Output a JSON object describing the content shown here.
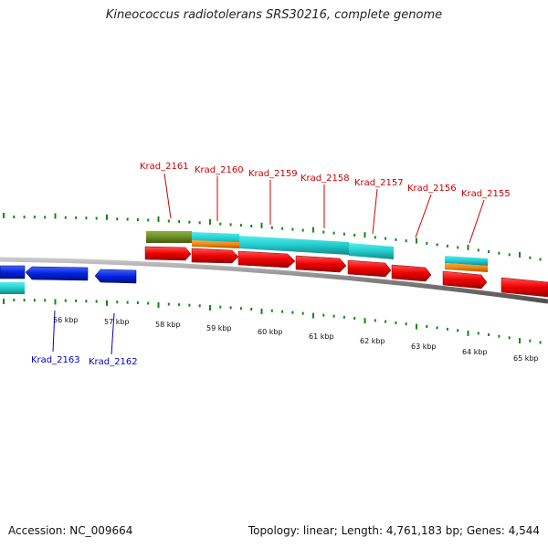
{
  "title": "Kineococcus radiotolerans SRS30216, complete genome",
  "footer": {
    "accession": "Accession: NC_009664",
    "summary": "Topology: linear; Length: 4,761,183 bp; Genes: 4,544"
  },
  "colors": {
    "gene_top": "#cc0000",
    "gene_bottom": "#0000cc",
    "tick": "#118811",
    "backbone": "#808080",
    "arrow_red": "#ee0000",
    "arrow_blue": "#0022dd",
    "bar_cyan": "#22cccc",
    "bar_orange": "#ee8811",
    "bar_olive": "#6b8e23"
  },
  "scale_labels": [
    "56 kbp",
    "57 kbp",
    "58 kbp",
    "59 kbp",
    "60 kbp",
    "61 kbp",
    "62 kbp",
    "63 kbp",
    "64 kbp",
    "65 kbp"
  ],
  "genes_top": [
    "Krad_2161",
    "Krad_2160",
    "Krad_2159",
    "Krad_2158",
    "Krad_2157",
    "Krad_2156",
    "Krad_2155"
  ],
  "genes_bottom": [
    "Krad_2163",
    "Krad_2162"
  ]
}
